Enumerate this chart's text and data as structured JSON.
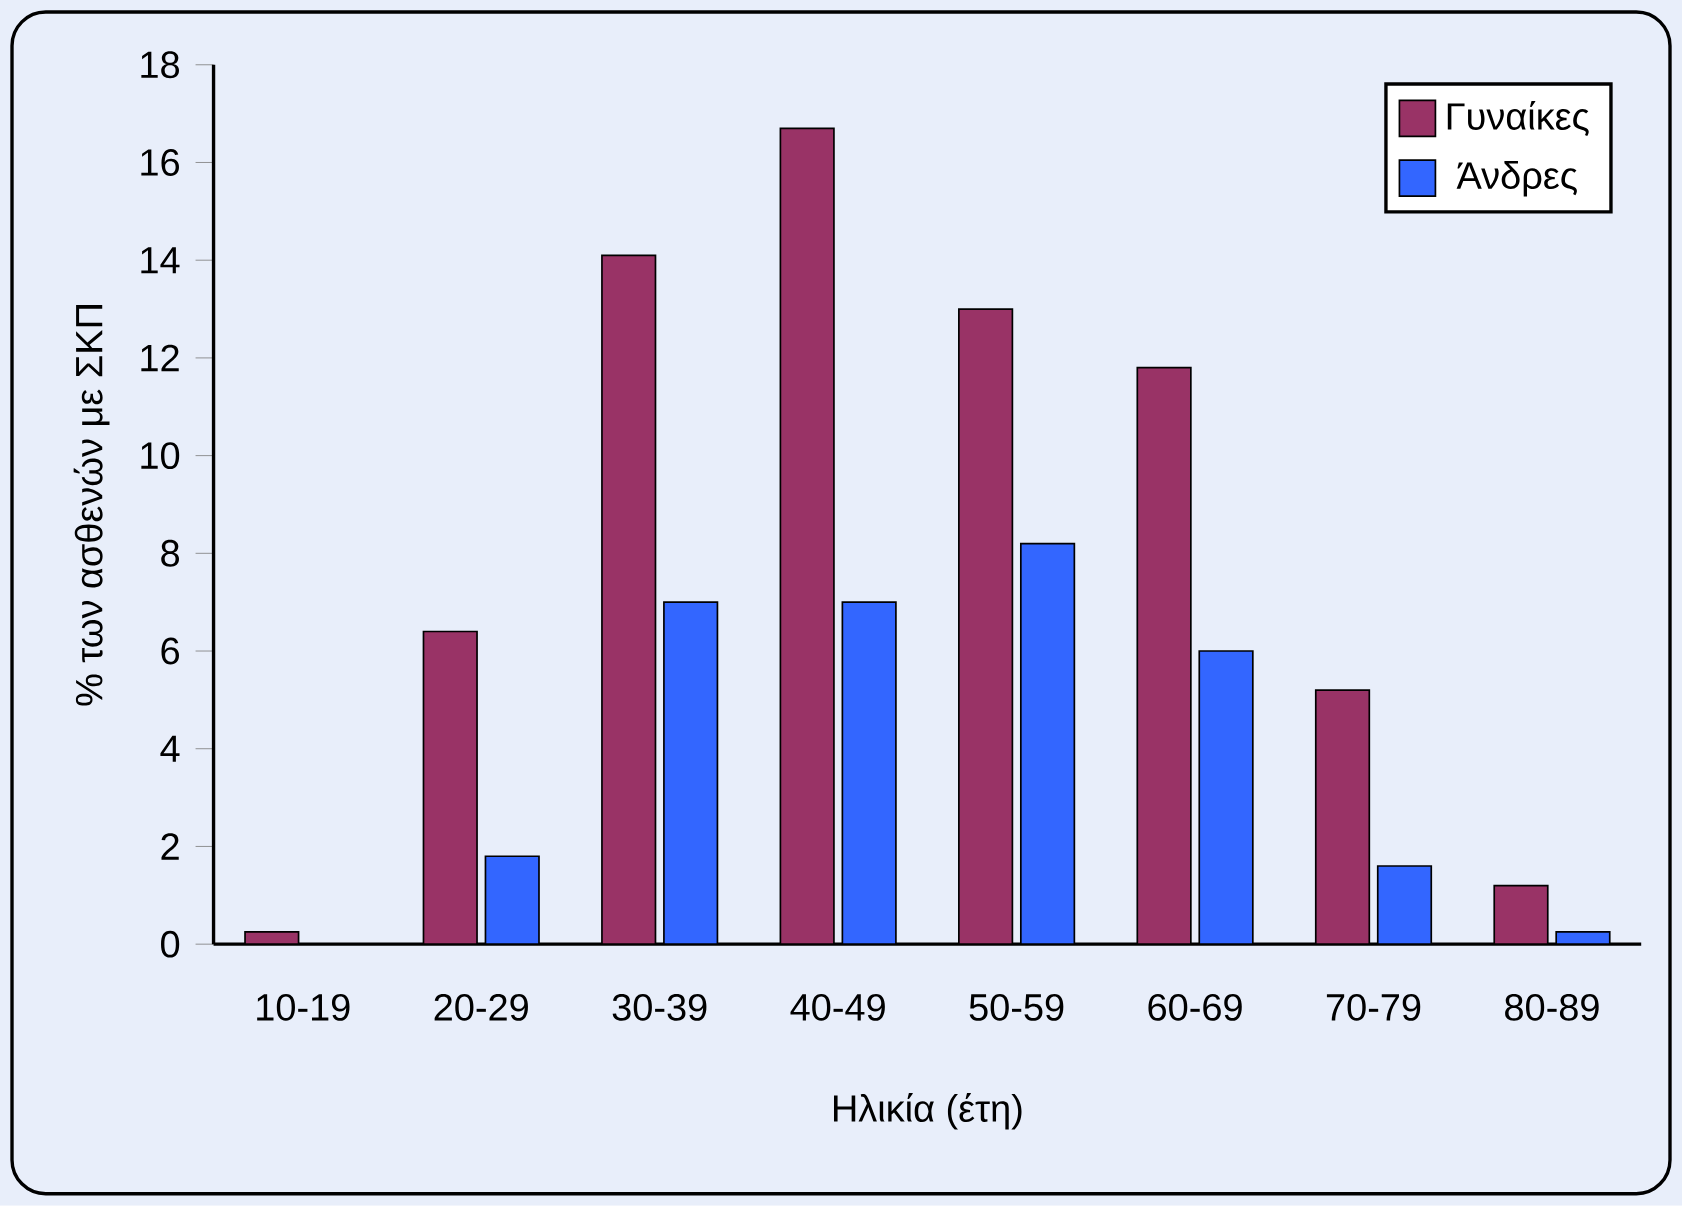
{
  "chart_data": {
    "type": "bar",
    "xlabel": "Ηλικία (έτη)",
    "ylabel": "% των ασθενών με ΣΚΠ",
    "categories": [
      "10-19",
      "20-29",
      "30-39",
      "40-49",
      "50-59",
      "60-69",
      "70-79",
      "80-89"
    ],
    "series": [
      {
        "name": "Γυναίκες",
        "color": "#993366",
        "values": [
          0.25,
          6.4,
          14.1,
          16.7,
          13.0,
          11.8,
          5.2,
          1.2
        ]
      },
      {
        "name": "Άνδρες",
        "color": "#3366ff",
        "values": [
          null,
          1.8,
          7.0,
          7.0,
          8.2,
          6.0,
          1.6,
          0.25
        ]
      }
    ],
    "ylim": [
      0,
      18
    ],
    "yticks": [
      0,
      2,
      4,
      6,
      8,
      10,
      12,
      14,
      16,
      18
    ],
    "legend": "top right",
    "grid": false
  }
}
